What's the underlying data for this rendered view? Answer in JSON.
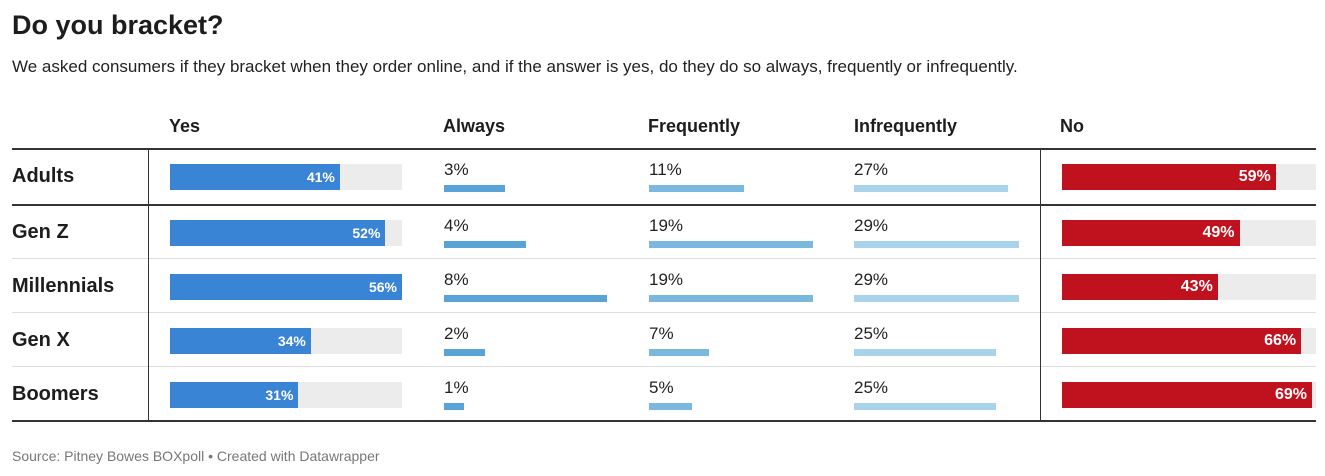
{
  "title": "Do you bracket?",
  "subtitle": "We asked consumers if they bracket when they order online, and if the answer is yes, do they do so always, frequently or infrequently.",
  "footer": "Source: Pitney Bowes BOXpoll • Created with Datawrapper",
  "colors": {
    "yes": "#3a84d6",
    "always": "#5aa3d7",
    "frequently": "#7bb8e0",
    "infrequently": "#a8d3ea",
    "no": "#c0111f",
    "track": "#ececec"
  },
  "chart_data": {
    "type": "table",
    "columns": [
      "",
      "Yes",
      "Always",
      "Frequently",
      "Infrequently",
      "No"
    ],
    "rows": [
      {
        "label": "Adults",
        "yes": 41,
        "yes_label": "41%",
        "always": 3,
        "always_label": "3%",
        "frequently": 11,
        "frequently_label": "11%",
        "infrequently": 27,
        "infrequently_label": "27%",
        "no": 59,
        "no_label": "59%"
      },
      {
        "label": "Gen Z",
        "yes": 52,
        "yes_label": "52%",
        "always": 4,
        "always_label": "4%",
        "frequently": 19,
        "frequently_label": "19%",
        "infrequently": 29,
        "infrequently_label": "29%",
        "no": 49,
        "no_label": "49%"
      },
      {
        "label": "Millennials",
        "yes": 56,
        "yes_label": "56%",
        "always": 8,
        "always_label": "8%",
        "frequently": 19,
        "frequently_label": "19%",
        "infrequently": 29,
        "infrequently_label": "29%",
        "no": 43,
        "no_label": "43%"
      },
      {
        "label": "Gen X",
        "yes": 34,
        "yes_label": "34%",
        "always": 2,
        "always_label": "2%",
        "frequently": 7,
        "frequently_label": "7%",
        "infrequently": 25,
        "infrequently_label": "25%",
        "no": 66,
        "no_label": "66%"
      },
      {
        "label": "Boomers",
        "yes": 31,
        "yes_label": "31%",
        "always": 1,
        "always_label": "1%",
        "frequently": 5,
        "frequently_label": "5%",
        "infrequently": 25,
        "infrequently_label": "25%",
        "no": 69,
        "no_label": "69%"
      }
    ]
  }
}
